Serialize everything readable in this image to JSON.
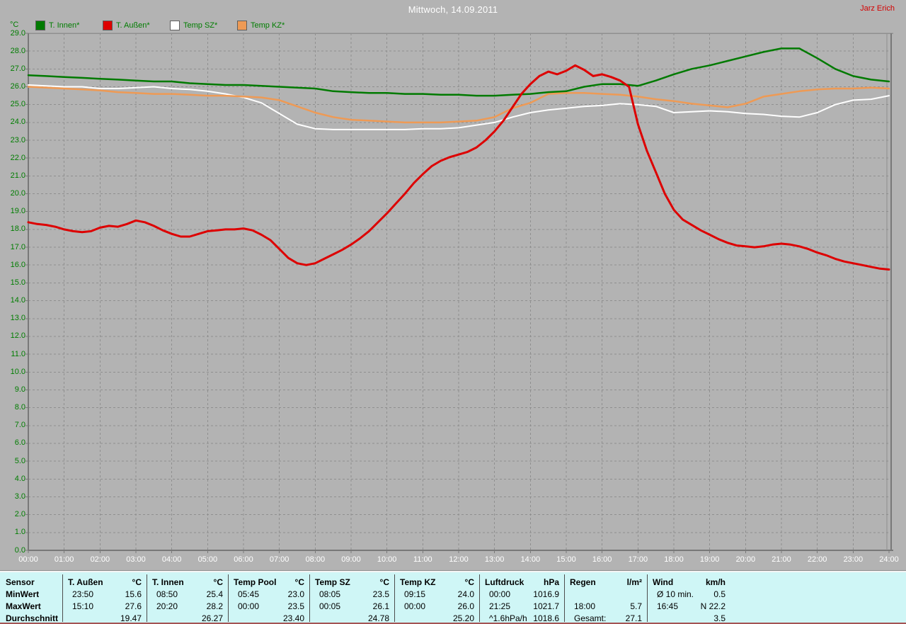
{
  "header": {
    "title": "Mittwoch, 14.09.2011",
    "user": "Jarz Erich"
  },
  "chart_data": {
    "type": "line",
    "title": "Mittwoch, 14.09.2011",
    "unit_label": "°C",
    "xlim": [
      0,
      24
    ],
    "ylim": [
      0,
      29
    ],
    "grid": true,
    "legend_position": "top-left",
    "x_tick_labels": [
      "00:00",
      "01:00",
      "02:00",
      "03:00",
      "04:00",
      "05:00",
      "06:00",
      "07:00",
      "08:00",
      "09:00",
      "10:00",
      "11:00",
      "12:00",
      "13:00",
      "14:00",
      "15:00",
      "16:00",
      "17:00",
      "18:00",
      "19:00",
      "20:00",
      "21:00",
      "22:00",
      "23:00",
      "24:00"
    ],
    "y_tick_labels": [
      "29.0",
      "28.0",
      "27.0",
      "26.0",
      "25.0",
      "24.0",
      "23.0",
      "22.0",
      "21.0",
      "20.0",
      "19.0",
      "18.0",
      "17.0",
      "16.0",
      "15.0",
      "14.0",
      "13.0",
      "12.0",
      "11.0",
      "10.0",
      "9.0",
      "8.0",
      "7.0",
      "6.0",
      "5.0",
      "4.0",
      "3.0",
      "2.0",
      "1.0",
      "0.0"
    ],
    "series": [
      {
        "name": "T. Innen*",
        "key": "t-innen",
        "color": "#007a00",
        "stroke_width": 2.5,
        "interval_min": 30,
        "values": [
          26.65,
          26.6,
          26.55,
          26.5,
          26.45,
          26.4,
          26.35,
          26.3,
          26.3,
          26.2,
          26.15,
          26.1,
          26.1,
          26.05,
          26.0,
          25.95,
          25.9,
          25.75,
          25.7,
          25.65,
          25.65,
          25.6,
          25.6,
          25.55,
          25.55,
          25.5,
          25.5,
          25.55,
          25.6,
          25.7,
          25.75,
          26.0,
          26.15,
          26.15,
          26.05,
          26.35,
          26.7,
          27.0,
          27.2,
          27.45,
          27.7,
          27.95,
          28.15,
          28.15,
          27.6,
          27.0,
          26.6,
          26.4,
          26.3
        ]
      },
      {
        "name": "T. Außen*",
        "key": "t-aussen",
        "color": "#dd0000",
        "stroke_width": 3,
        "interval_min": 15,
        "values": [
          18.4,
          18.3,
          18.25,
          18.15,
          18.0,
          17.9,
          17.85,
          17.9,
          18.1,
          18.2,
          18.15,
          18.3,
          18.5,
          18.4,
          18.2,
          17.95,
          17.75,
          17.6,
          17.6,
          17.75,
          17.9,
          17.95,
          18.0,
          18.0,
          18.05,
          17.95,
          17.7,
          17.4,
          16.9,
          16.4,
          16.1,
          16.0,
          16.1,
          16.35,
          16.6,
          16.85,
          17.15,
          17.5,
          17.9,
          18.4,
          18.9,
          19.45,
          20.0,
          20.6,
          21.1,
          21.55,
          21.85,
          22.05,
          22.2,
          22.35,
          22.6,
          23.0,
          23.5,
          24.1,
          24.85,
          25.6,
          26.15,
          26.6,
          26.85,
          26.7,
          26.9,
          27.2,
          26.95,
          26.6,
          26.7,
          26.55,
          26.35,
          26.0,
          23.9,
          22.4,
          21.2,
          20.0,
          19.1,
          18.55,
          18.25,
          17.95,
          17.7,
          17.45,
          17.25,
          17.1,
          17.05,
          17.0,
          17.05,
          17.15,
          17.2,
          17.15,
          17.05,
          16.9,
          16.7,
          16.55,
          16.35,
          16.2,
          16.1,
          16.0,
          15.9,
          15.8,
          15.75
        ]
      },
      {
        "name": "Temp SZ*",
        "key": "temp-sz",
        "color": "#ffffff",
        "stroke_width": 2,
        "interval_min": 30,
        "values": [
          26.1,
          26.05,
          26.0,
          26.0,
          25.9,
          25.9,
          25.95,
          26.0,
          25.9,
          25.85,
          25.75,
          25.6,
          25.4,
          25.1,
          24.5,
          23.9,
          23.65,
          23.6,
          23.6,
          23.6,
          23.6,
          23.6,
          23.65,
          23.65,
          23.7,
          23.85,
          24.0,
          24.3,
          24.55,
          24.7,
          24.8,
          24.9,
          24.95,
          25.05,
          25.0,
          24.9,
          24.55,
          24.6,
          24.65,
          24.6,
          24.5,
          24.45,
          24.35,
          24.3,
          24.55,
          25.0,
          25.25,
          25.3,
          25.5
        ]
      },
      {
        "name": "Temp KZ*",
        "key": "temp-kz",
        "color": "#ee9a55",
        "stroke_width": 2.5,
        "interval_min": 30,
        "values": [
          26.0,
          25.95,
          25.9,
          25.85,
          25.8,
          25.7,
          25.65,
          25.6,
          25.6,
          25.55,
          25.5,
          25.5,
          25.45,
          25.4,
          25.25,
          24.9,
          24.55,
          24.3,
          24.15,
          24.1,
          24.05,
          24.0,
          24.0,
          24.0,
          24.05,
          24.1,
          24.3,
          24.8,
          25.1,
          25.6,
          25.65,
          25.65,
          25.6,
          25.55,
          25.45,
          25.3,
          25.2,
          25.05,
          24.95,
          24.85,
          25.05,
          25.45,
          25.6,
          25.75,
          25.85,
          25.9,
          25.9,
          25.95,
          25.9
        ]
      }
    ]
  },
  "table": {
    "row_labels": [
      "Sensor",
      "MinWert",
      "MaxWert",
      "Durchschnitt"
    ],
    "columns": [
      {
        "name": "T. Außen",
        "unit": "°C",
        "rows": [
          [
            "23:50",
            "15.6"
          ],
          [
            "15:10",
            "27.6"
          ],
          [
            "",
            "19.47"
          ]
        ]
      },
      {
        "name": "T. Innen",
        "unit": "°C",
        "rows": [
          [
            "08:50",
            "25.4"
          ],
          [
            "20:20",
            "28.2"
          ],
          [
            "",
            "26.27"
          ]
        ]
      },
      {
        "name": "Temp Pool",
        "unit": "°C",
        "rows": [
          [
            "05:45",
            "23.0"
          ],
          [
            "00:00",
            "23.5"
          ],
          [
            "",
            "23.40"
          ]
        ]
      },
      {
        "name": "Temp SZ",
        "unit": "°C",
        "rows": [
          [
            "08:05",
            "23.5"
          ],
          [
            "00:05",
            "26.1"
          ],
          [
            "",
            "24.78"
          ]
        ]
      },
      {
        "name": "Temp KZ",
        "unit": "°C",
        "rows": [
          [
            "09:15",
            "24.0"
          ],
          [
            "00:00",
            "26.0"
          ],
          [
            "",
            "25.20"
          ]
        ]
      },
      {
        "name": "Luftdruck",
        "unit": "hPa",
        "rows": [
          [
            "00:00",
            "1016.9"
          ],
          [
            "21:25",
            "1021.7"
          ],
          [
            "^1.6hPa/h",
            "1018.6"
          ]
        ]
      },
      {
        "name": "Regen",
        "unit": "l/m²",
        "rows": [
          [
            "",
            ""
          ],
          [
            "18:00",
            "5.7"
          ],
          [
            "Gesamt:",
            "27.1"
          ]
        ]
      },
      {
        "name": "Wind",
        "unit": "km/h",
        "rows": [
          [
            "Ø 10 min.",
            "0.5"
          ],
          [
            "16:45",
            "N 22.2"
          ],
          [
            "",
            "3.5"
          ]
        ]
      }
    ]
  }
}
